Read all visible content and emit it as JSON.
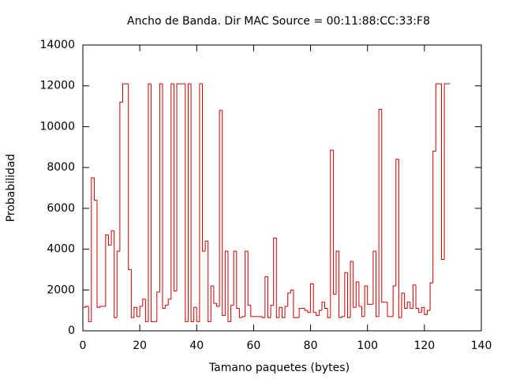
{
  "chart_data": {
    "type": "step",
    "title": "Ancho de Banda. Dir MAC Source = 00:11:88:CC:33:F8",
    "x_label": "Tamano paquetes (bytes)",
    "y_label": "Probabilidad",
    "series": [
      {
        "color": "#cc0000",
        "x": [
          0,
          1,
          2,
          3,
          4,
          5,
          6,
          7,
          8,
          9,
          10,
          11,
          12,
          13,
          14,
          15,
          16,
          17,
          18,
          19,
          20,
          21,
          22,
          23,
          24,
          25,
          26,
          27,
          28,
          29,
          30,
          31,
          32,
          33,
          34,
          35,
          36,
          37,
          38,
          39,
          40,
          41,
          42,
          43,
          44,
          45,
          46,
          47,
          48,
          49,
          50,
          51,
          52,
          53,
          54,
          55,
          56,
          57,
          58,
          59,
          60,
          61,
          62,
          63,
          64,
          65,
          66,
          67,
          68,
          69,
          70,
          71,
          72,
          73,
          74,
          75,
          76,
          77,
          78,
          79,
          80,
          81,
          82,
          83,
          84,
          85,
          86,
          87,
          88,
          89,
          90,
          91,
          92,
          93,
          94,
          95,
          96,
          97,
          98,
          99,
          100,
          101,
          102,
          103,
          104,
          105,
          106,
          107,
          108,
          109,
          110,
          111,
          112,
          113,
          114,
          115,
          116,
          117,
          118,
          119,
          120,
          121,
          122,
          123,
          124,
          125,
          126,
          127,
          128
        ],
        "values": [
          1150,
          1200,
          450,
          7500,
          6400,
          1150,
          1200,
          1200,
          4700,
          4200,
          4900,
          650,
          3900,
          11200,
          12100,
          12100,
          3000,
          650,
          1150,
          700,
          1200,
          1550,
          450,
          12100,
          450,
          450,
          1900,
          12100,
          1100,
          1250,
          1550,
          12100,
          1950,
          12100,
          12100,
          12100,
          450,
          12100,
          450,
          1150,
          450,
          12100,
          3900,
          4400,
          450,
          2200,
          1350,
          1200,
          10800,
          750,
          3900,
          450,
          1250,
          3900,
          1100,
          650,
          700,
          3900,
          1250,
          700,
          700,
          700,
          700,
          650,
          2650,
          650,
          1250,
          4550,
          650,
          1150,
          650,
          1200,
          1850,
          2000,
          650,
          650,
          1100,
          1100,
          1000,
          900,
          2300,
          900,
          750,
          1000,
          1400,
          1100,
          650,
          8850,
          1800,
          3900,
          650,
          700,
          2850,
          650,
          3400,
          1150,
          2400,
          1200,
          700,
          2200,
          1300,
          1300,
          3900,
          700,
          10850,
          1400,
          1400,
          700,
          700,
          2200,
          8400,
          650,
          1850,
          1100,
          1400,
          1100,
          2250,
          1100,
          900,
          1150,
          800,
          1000,
          2350,
          8800,
          12100,
          12100,
          3500,
          12100,
          12100
        ]
      }
    ],
    "xlim": [
      0,
      140
    ],
    "xticks": [
      0,
      20,
      40,
      60,
      80,
      100,
      120,
      140
    ],
    "ylim": [
      0,
      14000
    ],
    "yticks": [
      0,
      2000,
      4000,
      6000,
      8000,
      10000,
      12000,
      14000
    ],
    "grid": false
  }
}
